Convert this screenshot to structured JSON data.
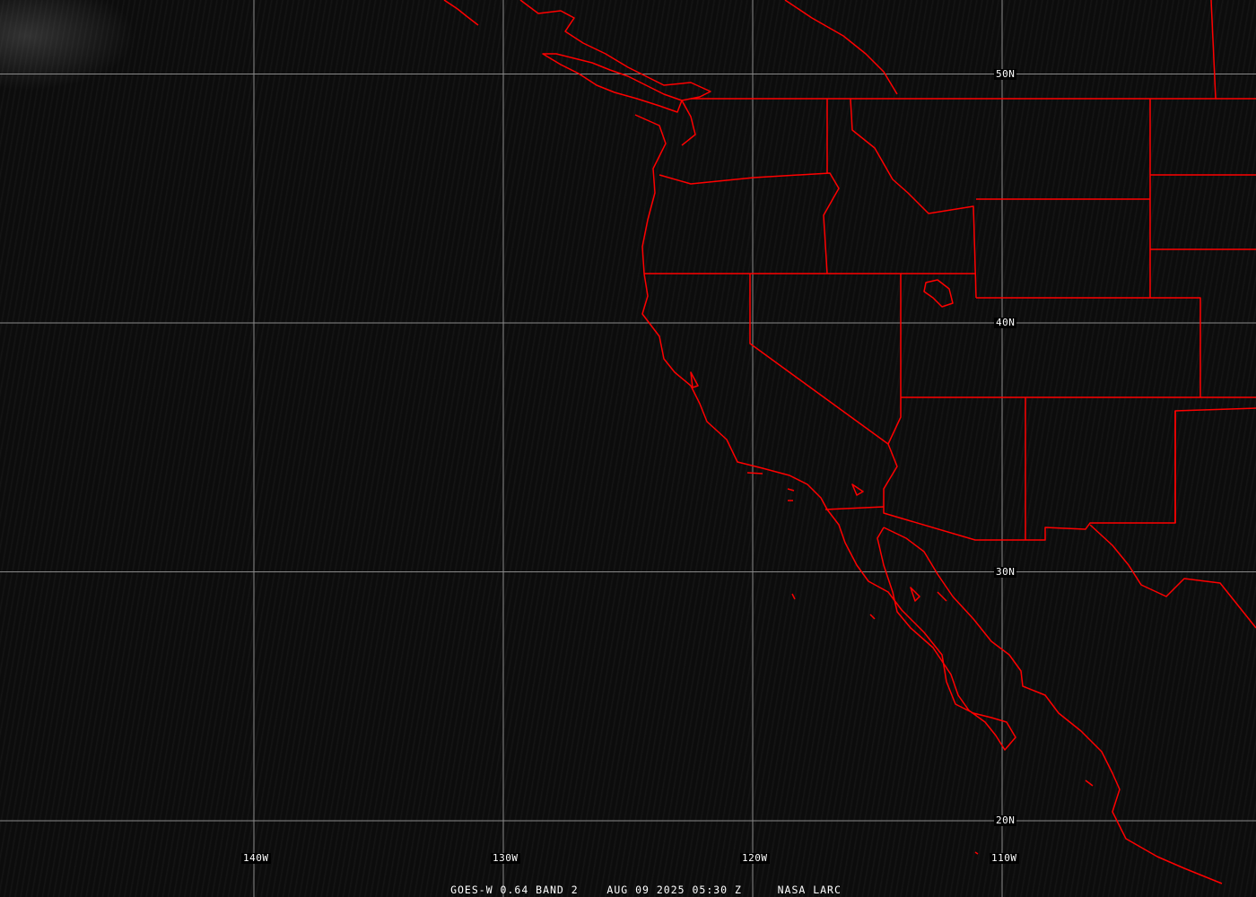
{
  "caption": {
    "satellite": "GOES-W 0.64 BAND 2",
    "datetime": "AUG 09 2025 05:30 Z",
    "source": "NASA LARC"
  },
  "grid": {
    "longitudes": [
      {
        "value": -140,
        "label": "140W"
      },
      {
        "value": -130,
        "label": "130W"
      },
      {
        "value": -120,
        "label": "120W"
      },
      {
        "value": -110,
        "label": "110W"
      }
    ],
    "latitudes": [
      {
        "value": 50,
        "label": "50N"
      },
      {
        "value": 40,
        "label": "40N"
      },
      {
        "value": 30,
        "label": "30N"
      },
      {
        "value": 20,
        "label": "20N"
      }
    ]
  },
  "colors": {
    "boundaries": "#ff0000",
    "grid": "#8a8a8a",
    "background": "#0c0c0c",
    "text": "#ffffff"
  }
}
